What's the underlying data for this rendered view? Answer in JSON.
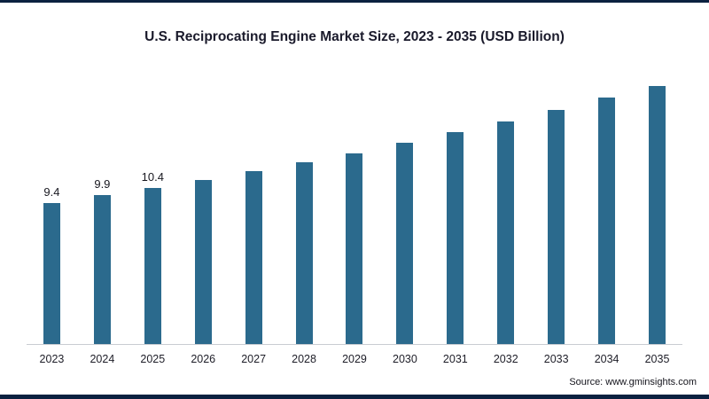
{
  "chart_data": {
    "type": "bar",
    "title": "U.S. Reciprocating Engine Market Size, 2023 - 2035 (USD Billion)",
    "categories": [
      "2023",
      "2024",
      "2025",
      "2026",
      "2027",
      "2028",
      "2029",
      "2030",
      "2031",
      "2032",
      "2033",
      "2034",
      "2035"
    ],
    "values": [
      9.4,
      9.9,
      10.4,
      10.9,
      11.5,
      12.1,
      12.7,
      13.4,
      14.1,
      14.8,
      15.6,
      16.4,
      17.2
    ],
    "data_labels": [
      "9.4",
      "9.9",
      "10.4",
      "",
      "",
      "",
      "",
      "",
      "",
      "",
      "",
      "",
      ""
    ],
    "xlabel": "",
    "ylabel": "",
    "ylim": [
      0,
      18
    ],
    "grid": false,
    "legend": false,
    "bar_color": "#2b6a8d"
  },
  "source": {
    "label": "Source: www.gminsights.com"
  }
}
